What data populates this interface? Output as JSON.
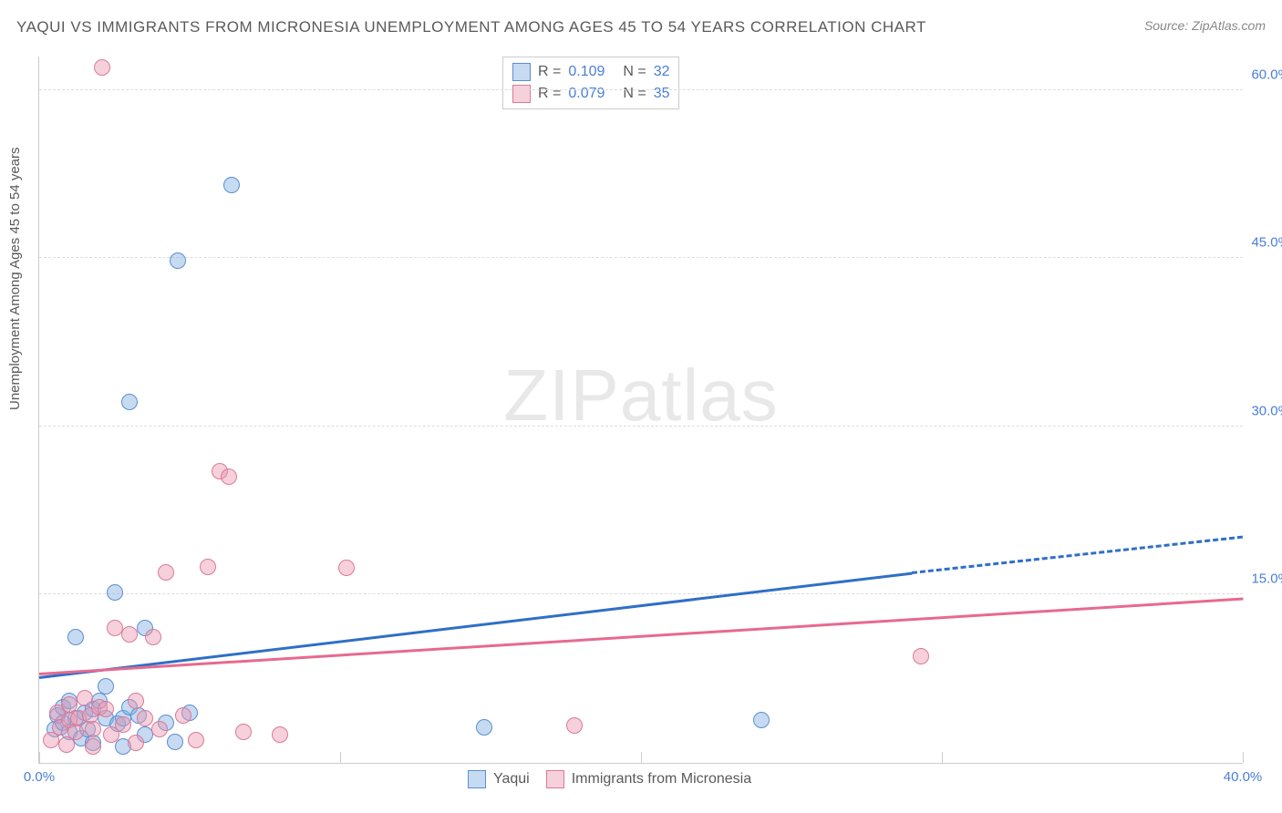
{
  "title": "YAQUI VS IMMIGRANTS FROM MICRONESIA UNEMPLOYMENT AMONG AGES 45 TO 54 YEARS CORRELATION CHART",
  "source": "Source: ZipAtlas.com",
  "ylabel": "Unemployment Among Ages 45 to 54 years",
  "watermark_zip": "ZIP",
  "watermark_atlas": "atlas",
  "chart": {
    "type": "scatter",
    "xlim": [
      0,
      40
    ],
    "ylim": [
      0,
      63
    ],
    "xticks": [
      0,
      10,
      20,
      30,
      40
    ],
    "xtick_labels": [
      "0.0%",
      "",
      "",
      "",
      "40.0%"
    ],
    "ygrid": [
      15,
      30,
      45,
      60
    ],
    "ytick_labels": [
      "15.0%",
      "30.0%",
      "45.0%",
      "60.0%"
    ],
    "background_color": "#ffffff",
    "grid_color": "#dddddd",
    "axis_color": "#cccccc",
    "text_color": "#5a5a5a",
    "tick_label_color": "#4a7fd6"
  },
  "series": [
    {
      "name": "Yaqui",
      "fill": "rgba(128,172,224,0.45)",
      "stroke": "#5a8fd0",
      "line_color": "#2f6fc7",
      "marker_radius": 9,
      "R_label": "R  =",
      "R": "0.109",
      "N_label": "N  =",
      "N": "32",
      "trend": {
        "x0": 0,
        "y0": 7.5,
        "x1_solid": 29,
        "y1_solid": 16.8,
        "x1_dash": 40,
        "y1_dash": 20.0
      },
      "points": [
        [
          0.5,
          3.0
        ],
        [
          0.6,
          4.2
        ],
        [
          0.8,
          3.6
        ],
        [
          0.8,
          5.0
        ],
        [
          1.0,
          2.8
        ],
        [
          1.0,
          5.5
        ],
        [
          1.2,
          4.0
        ],
        [
          1.2,
          11.2
        ],
        [
          1.4,
          2.2
        ],
        [
          1.5,
          4.5
        ],
        [
          1.6,
          3.0
        ],
        [
          1.8,
          1.8
        ],
        [
          1.8,
          4.8
        ],
        [
          2.0,
          5.5
        ],
        [
          2.2,
          4.0
        ],
        [
          2.2,
          6.8
        ],
        [
          2.5,
          15.2
        ],
        [
          2.6,
          3.5
        ],
        [
          2.8,
          1.5
        ],
        [
          2.8,
          4.0
        ],
        [
          3.0,
          32.2
        ],
        [
          3.0,
          5.0
        ],
        [
          3.3,
          4.2
        ],
        [
          3.5,
          2.5
        ],
        [
          3.5,
          12.0
        ],
        [
          4.2,
          3.6
        ],
        [
          4.5,
          1.9
        ],
        [
          4.6,
          44.8
        ],
        [
          5.0,
          4.5
        ],
        [
          6.4,
          51.5
        ],
        [
          14.8,
          3.2
        ],
        [
          24.0,
          3.8
        ]
      ]
    },
    {
      "name": "Immigrants from Micronesia",
      "fill": "rgba(235,150,175,0.45)",
      "stroke": "#d97a9a",
      "line_color": "#e66a8f",
      "marker_radius": 9,
      "R_label": "R  =",
      "R": "0.079",
      "N_label": "N  =",
      "N": "35",
      "trend": {
        "x0": 0,
        "y0": 7.8,
        "x1_solid": 40,
        "y1_solid": 14.5,
        "x1_dash": 40,
        "y1_dash": 14.5
      },
      "points": [
        [
          0.4,
          2.0
        ],
        [
          0.6,
          4.5
        ],
        [
          0.7,
          3.2
        ],
        [
          0.9,
          1.6
        ],
        [
          1.0,
          3.8
        ],
        [
          1.0,
          5.2
        ],
        [
          1.2,
          2.8
        ],
        [
          1.3,
          4.0
        ],
        [
          1.5,
          5.8
        ],
        [
          1.7,
          4.2
        ],
        [
          1.8,
          3.0
        ],
        [
          1.8,
          1.5
        ],
        [
          2.0,
          5.0
        ],
        [
          2.1,
          62.0
        ],
        [
          2.2,
          4.8
        ],
        [
          2.4,
          2.5
        ],
        [
          2.5,
          12.0
        ],
        [
          2.8,
          3.4
        ],
        [
          3.0,
          11.5
        ],
        [
          3.2,
          5.5
        ],
        [
          3.2,
          1.8
        ],
        [
          3.5,
          4.0
        ],
        [
          3.8,
          11.2
        ],
        [
          4.0,
          3.0
        ],
        [
          4.2,
          17.0
        ],
        [
          4.8,
          4.2
        ],
        [
          5.2,
          2.0
        ],
        [
          5.6,
          17.5
        ],
        [
          6.0,
          26.0
        ],
        [
          6.3,
          25.5
        ],
        [
          6.8,
          2.8
        ],
        [
          8.0,
          2.5
        ],
        [
          10.2,
          17.4
        ],
        [
          17.8,
          3.3
        ],
        [
          29.3,
          9.5
        ]
      ]
    }
  ],
  "legend_bottom": {
    "items": [
      "Yaqui",
      "Immigrants from Micronesia"
    ]
  }
}
